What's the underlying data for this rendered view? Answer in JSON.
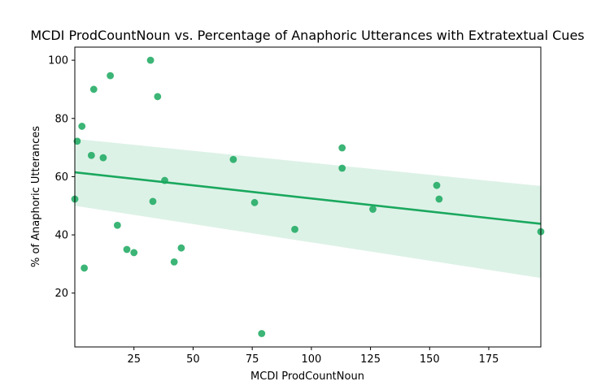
{
  "chart_data": {
    "type": "scatter",
    "title": "MCDI ProdCountNoun vs. Percentage of Anaphoric Utterances with Extratextual Cues",
    "xlabel": "MCDI ProdCountNoun",
    "ylabel": "% of Anaphoric Utterances",
    "xlim": [
      0,
      197
    ],
    "ylim": [
      1.5,
      104.5
    ],
    "xticks": [
      25,
      50,
      75,
      100,
      125,
      150,
      175
    ],
    "yticks": [
      20,
      40,
      60,
      80,
      100
    ],
    "grid": false,
    "legend": "none",
    "point_color": "#1aa85e",
    "points": [
      {
        "x": 0,
        "y": 52.3
      },
      {
        "x": 1,
        "y": 72.2
      },
      {
        "x": 3,
        "y": 77.3
      },
      {
        "x": 4,
        "y": 28.6
      },
      {
        "x": 7,
        "y": 67.3
      },
      {
        "x": 8,
        "y": 90.0
      },
      {
        "x": 12,
        "y": 66.5
      },
      {
        "x": 15,
        "y": 94.7
      },
      {
        "x": 18,
        "y": 43.3
      },
      {
        "x": 22,
        "y": 35.0
      },
      {
        "x": 25,
        "y": 33.9
      },
      {
        "x": 32,
        "y": 100.0
      },
      {
        "x": 33,
        "y": 51.5
      },
      {
        "x": 35,
        "y": 87.5
      },
      {
        "x": 38,
        "y": 58.7
      },
      {
        "x": 42,
        "y": 30.7
      },
      {
        "x": 45,
        "y": 35.5
      },
      {
        "x": 67,
        "y": 65.9
      },
      {
        "x": 76,
        "y": 51.1
      },
      {
        "x": 79,
        "y": 6.1
      },
      {
        "x": 93,
        "y": 41.9
      },
      {
        "x": 113,
        "y": 69.9
      },
      {
        "x": 113,
        "y": 62.9
      },
      {
        "x": 126,
        "y": 48.8
      },
      {
        "x": 153,
        "y": 57.0
      },
      {
        "x": 154,
        "y": 52.3
      },
      {
        "x": 197,
        "y": 41.1
      }
    ],
    "regression": {
      "x": [
        0,
        197
      ],
      "y": [
        61.5,
        43.8
      ],
      "ci_lower": [
        50.0,
        25.2
      ],
      "ci_upper": [
        73.0,
        56.8
      ]
    }
  }
}
